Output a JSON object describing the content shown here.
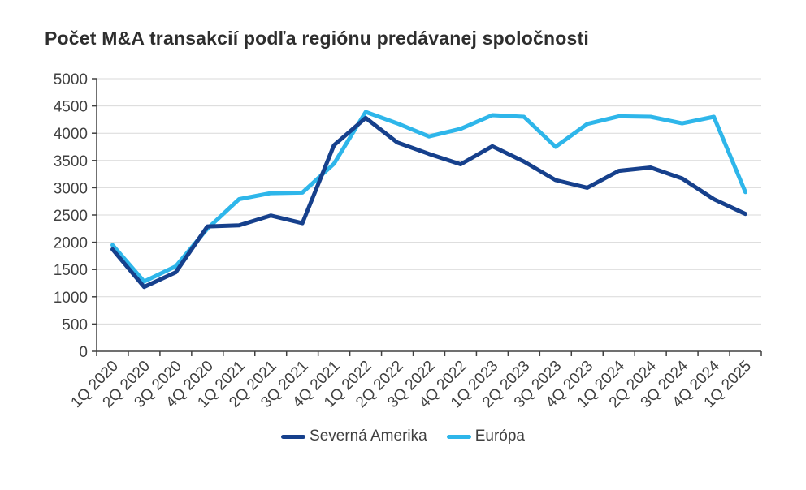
{
  "chart_data": {
    "type": "line",
    "title": "Počet M&A transakcií podľa regiónu predávanej spoločnosti",
    "xlabel": "",
    "ylabel": "",
    "ylim": [
      0,
      5000
    ],
    "ytick_step": 500,
    "grid": true,
    "legend_position": "bottom",
    "categories": [
      "1Q 2020",
      "2Q 2020",
      "3Q 2020",
      "4Q 2020",
      "1Q 2021",
      "2Q 2021",
      "3Q 2021",
      "4Q 2021",
      "1Q 2022",
      "2Q 2022",
      "3Q 2022",
      "4Q 2022",
      "1Q 2023",
      "2Q 2023",
      "3Q 2023",
      "4Q 2023",
      "1Q 2024",
      "2Q 2024",
      "3Q 2024",
      "4Q 2024",
      "1Q 2025"
    ],
    "series": [
      {
        "name": "Severná Amerika",
        "color": "#16408c",
        "values": [
          1870,
          1180,
          1450,
          2290,
          2310,
          2490,
          2350,
          3780,
          4280,
          3830,
          3620,
          3430,
          3760,
          3480,
          3140,
          3000,
          3310,
          3370,
          3170,
          2790,
          2520
        ]
      },
      {
        "name": "Európa",
        "color": "#2eb6ea",
        "values": [
          1950,
          1280,
          1560,
          2250,
          2790,
          2900,
          2910,
          3440,
          4390,
          4180,
          3940,
          4080,
          4330,
          4300,
          3750,
          4170,
          4310,
          4300,
          4180,
          4300,
          2920
        ]
      }
    ],
    "colors": {
      "grid": "#d9d9d9",
      "axis": "#404040",
      "tick_label": "#404040",
      "title": "#2e2e2e"
    }
  }
}
